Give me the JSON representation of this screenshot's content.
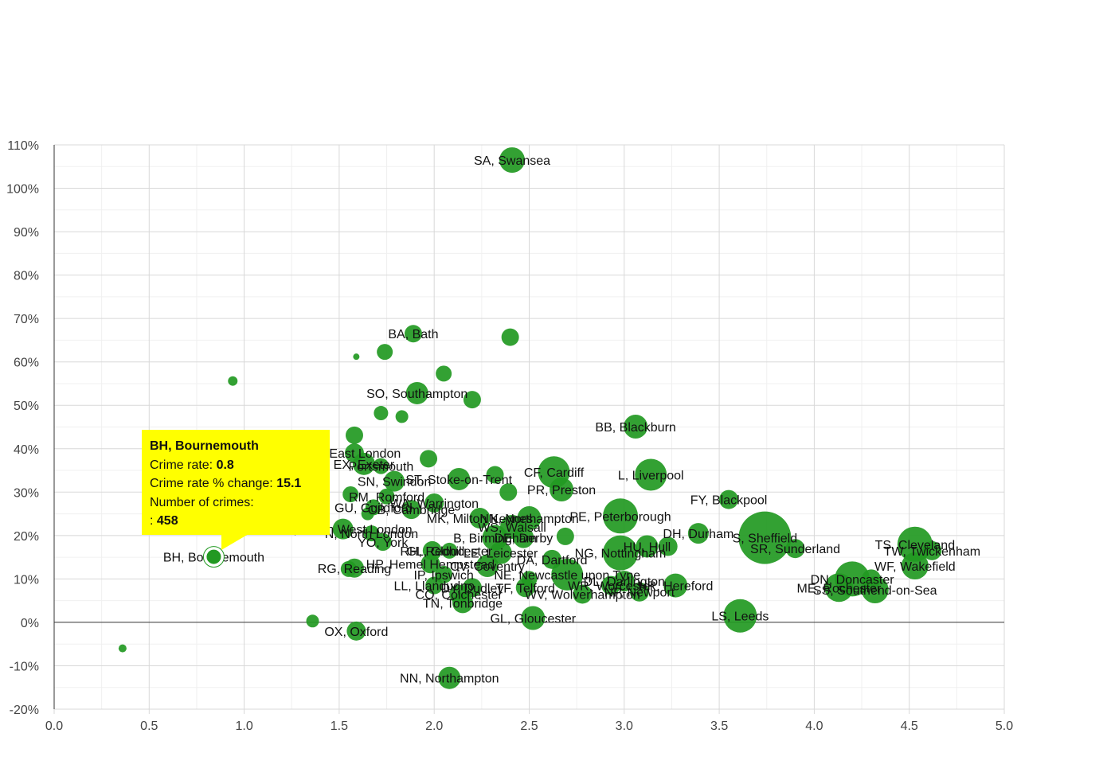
{
  "chart_data": {
    "type": "scatter",
    "xlim": [
      0,
      5
    ],
    "ylim": [
      -20,
      110
    ],
    "x_ticks": [
      0,
      0.5,
      1,
      1.5,
      2,
      2.5,
      3,
      3.5,
      4,
      4.5,
      5
    ],
    "y_ticks": [
      -20,
      -10,
      0,
      10,
      20,
      30,
      40,
      50,
      60,
      70,
      80,
      90,
      100,
      110
    ],
    "grid": true,
    "bubble_color": "#229922",
    "points": [
      {
        "label": "SA, Swansea",
        "x": 2.41,
        "y": 106.5,
        "r": 16
      },
      {
        "label": "BA, Bath",
        "x": 1.89,
        "y": 66.5,
        "r": 11
      },
      {
        "label": "",
        "x": 2.4,
        "y": 65.7,
        "r": 11
      },
      {
        "label": "",
        "x": 1.74,
        "y": 62.3,
        "r": 10
      },
      {
        "label": "",
        "x": 1.59,
        "y": 61.2,
        "r": 4
      },
      {
        "label": "",
        "x": 2.05,
        "y": 57.3,
        "r": 10
      },
      {
        "label": "",
        "x": 0.94,
        "y": 55.6,
        "r": 6
      },
      {
        "label": "SO, Southampton",
        "x": 1.91,
        "y": 52.8,
        "r": 14
      },
      {
        "label": "",
        "x": 2.2,
        "y": 51.3,
        "r": 11
      },
      {
        "label": "",
        "x": 1.72,
        "y": 48.2,
        "r": 9
      },
      {
        "label": "",
        "x": 1.83,
        "y": 47.4,
        "r": 8
      },
      {
        "label": "BB, Blackburn",
        "x": 3.06,
        "y": 45.1,
        "r": 15
      },
      {
        "label": "",
        "x": 1.58,
        "y": 43.1,
        "r": 11
      },
      {
        "label": "uth East London",
        "x": 1.58,
        "y": 39.0,
        "r": 12
      },
      {
        "label": "",
        "x": 1.97,
        "y": 37.7,
        "r": 11
      },
      {
        "label": "EX, Exeter",
        "x": 1.63,
        "y": 36.5,
        "r": 14
      },
      {
        "label": "Portsmouth",
        "x": 1.72,
        "y": 36.0,
        "r": 10
      },
      {
        "label": "CF, Cardiff",
        "x": 2.63,
        "y": 34.6,
        "r": 20
      },
      {
        "label": "L, Liverpool",
        "x": 3.14,
        "y": 34.0,
        "r": 20
      },
      {
        "label": "",
        "x": 2.32,
        "y": 34.0,
        "r": 11
      },
      {
        "label": "ST, Stoke-on-Trent",
        "x": 2.13,
        "y": 33.0,
        "r": 14
      },
      {
        "label": "SN, Swindon",
        "x": 1.79,
        "y": 32.5,
        "r": 13
      },
      {
        "label": "",
        "x": 2.39,
        "y": 30.0,
        "r": 11
      },
      {
        "label": "PR, Preston",
        "x": 2.67,
        "y": 30.6,
        "r": 15
      },
      {
        "label": "RM, Romford",
        "x": 1.75,
        "y": 29.0,
        "r": 10
      },
      {
        "label": "",
        "x": 1.56,
        "y": 29.5,
        "r": 10
      },
      {
        "label": "FY, Blackpool",
        "x": 3.55,
        "y": 28.3,
        "r": 12
      },
      {
        "label": "WA, Warrington",
        "x": 2.0,
        "y": 27.5,
        "r": 12
      },
      {
        "label": "GU, Guildford",
        "x": 1.68,
        "y": 26.5,
        "r": 10
      },
      {
        "label": "CB, Cambridge",
        "x": 1.88,
        "y": 26.0,
        "r": 12
      },
      {
        "label": "",
        "x": 1.65,
        "y": 25.0,
        "r": 8
      },
      {
        "label": "PE, Peterborough",
        "x": 2.98,
        "y": 24.5,
        "r": 22
      },
      {
        "label": "MK, Milton Keynes",
        "x": 2.24,
        "y": 24.0,
        "r": 13
      },
      {
        "label": "NN, Northampton",
        "x": 2.5,
        "y": 24.0,
        "r": 15
      },
      {
        "label": "WS, Walsall",
        "x": 2.41,
        "y": 22.0,
        "r": 15
      },
      {
        "label": "SW, South West London",
        "x": 1.52,
        "y": 21.5,
        "r": 13
      },
      {
        "label": "N, North London",
        "x": 1.67,
        "y": 20.5,
        "r": 10
      },
      {
        "label": "DH, Durham",
        "x": 3.39,
        "y": 20.5,
        "r": 13
      },
      {
        "label": "S, Sheffield",
        "x": 3.74,
        "y": 19.5,
        "r": 33
      },
      {
        "label": "",
        "x": 2.69,
        "y": 19.8,
        "r": 11
      },
      {
        "label": "B, Birmingham",
        "x": 2.32,
        "y": 19.5,
        "r": 16
      },
      {
        "label": "DE, Derby",
        "x": 2.47,
        "y": 19.5,
        "r": 13
      },
      {
        "label": "YO, York",
        "x": 1.73,
        "y": 18.5,
        "r": 11
      },
      {
        "label": "TS, Cleveland",
        "x": 4.53,
        "y": 18.0,
        "r": 22
      },
      {
        "label": "HU, Hull",
        "x": 3.12,
        "y": 17.5,
        "r": 14
      },
      {
        "label": "",
        "x": 3.23,
        "y": 17.5,
        "r": 12
      },
      {
        "label": "SR, Sunderland",
        "x": 3.9,
        "y": 17.0,
        "r": 12
      },
      {
        "label": "TW, Twickenham",
        "x": 4.62,
        "y": 16.5,
        "r": 12
      },
      {
        "label": "LE, Leicester",
        "x": 2.35,
        "y": 16.0,
        "r": 14
      },
      {
        "label": "NG, Nottingham",
        "x": 2.98,
        "y": 16.0,
        "r": 22
      },
      {
        "label": "RH, Redhill",
        "x": 1.99,
        "y": 16.5,
        "r": 12
      },
      {
        "label": "GL, Gloucester",
        "x": 2.08,
        "y": 16.5,
        "r": 10
      },
      {
        "label": "BH, Bournemouth",
        "x": 0.84,
        "y": 15.1,
        "r": 10
      },
      {
        "label": "DA, Dartford",
        "x": 2.62,
        "y": 14.5,
        "r": 12
      },
      {
        "label": "WF, Wakefield",
        "x": 4.53,
        "y": 13.0,
        "r": 17
      },
      {
        "label": "HP, Hemel Hempstead",
        "x": 1.98,
        "y": 13.5,
        "r": 12
      },
      {
        "label": "CV, Coventry",
        "x": 2.28,
        "y": 13.0,
        "r": 14
      },
      {
        "label": "RG, Reading",
        "x": 1.58,
        "y": 12.5,
        "r": 12
      },
      {
        "label": "",
        "x": 1.55,
        "y": 12.3,
        "r": 10
      },
      {
        "label": "NE, Newcastle upon Tyne",
        "x": 2.7,
        "y": 11.0,
        "r": 20
      },
      {
        "label": "IP, Ipswich",
        "x": 2.05,
        "y": 11.0,
        "r": 11
      },
      {
        "label": "",
        "x": 2.5,
        "y": 10.0,
        "r": 10
      },
      {
        "label": "DN, Doncaster",
        "x": 4.2,
        "y": 10.0,
        "r": 22
      },
      {
        "label": "",
        "x": 4.3,
        "y": 10.0,
        "r": 12
      },
      {
        "label": "DL, Darlington",
        "x": 3.0,
        "y": 9.5,
        "r": 13
      },
      {
        "label": "WR, Worcester",
        "x": 2.93,
        "y": 8.5,
        "r": 12
      },
      {
        "label": "LL, Llandudno",
        "x": 2.0,
        "y": 8.5,
        "r": 11
      },
      {
        "label": "DY, Dudley",
        "x": 2.2,
        "y": 8.0,
        "r": 12
      },
      {
        "label": "TF, Telford",
        "x": 2.48,
        "y": 8.0,
        "r": 12
      },
      {
        "label": "ME, Rochester",
        "x": 4.13,
        "y": 8.0,
        "r": 18
      },
      {
        "label": "SS, Southend-on-Sea",
        "x": 4.32,
        "y": 7.5,
        "r": 17
      },
      {
        "label": "NP, Newport",
        "x": 3.08,
        "y": 7.0,
        "r": 12
      },
      {
        "label": "HR, Hereford",
        "x": 3.27,
        "y": 8.5,
        "r": 15
      },
      {
        "label": "CO, Colchester",
        "x": 2.13,
        "y": 6.5,
        "r": 12
      },
      {
        "label": "WV, Wolverhampton",
        "x": 2.78,
        "y": 6.5,
        "r": 12
      },
      {
        "label": "TN, Tonbridge",
        "x": 2.15,
        "y": 4.5,
        "r": 13
      },
      {
        "label": "LS, Leeds",
        "x": 3.61,
        "y": 1.5,
        "r": 21
      },
      {
        "label": "GL, Gloucester",
        "x": 2.52,
        "y": 1.0,
        "r": 15
      },
      {
        "label": "",
        "x": 1.36,
        "y": 0.3,
        "r": 8
      },
      {
        "label": "OX, Oxford",
        "x": 1.59,
        "y": -2.0,
        "r": 12
      },
      {
        "label": "",
        "x": 0.36,
        "y": -6.0,
        "r": 5
      },
      {
        "label": "NN, Northampton",
        "x": 2.08,
        "y": -12.8,
        "r": 14
      }
    ],
    "highlight": {
      "label": "BH, Bournemouth",
      "x": 0.84,
      "y": 15.1
    }
  },
  "tooltip": {
    "title": "BH, Bournemouth",
    "rate_label": "Crime rate:",
    "rate_value": "0.8",
    "change_label": "Crime rate % change:",
    "change_value": "15.1",
    "crimes_label": "Number of crimes:",
    "crimes_prefix": ":",
    "crimes_value": "458"
  }
}
